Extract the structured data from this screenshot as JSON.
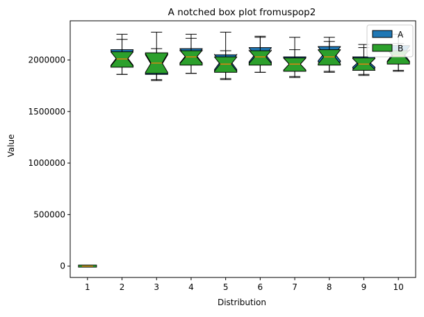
{
  "chart_data": {
    "type": "box",
    "title": "A notched box plot fromuspop2",
    "xlabel": "Distribution",
    "ylabel": "Value",
    "ylim": [
      -110000,
      2380000
    ],
    "xlim": [
      0.5,
      10.5
    ],
    "y_ticks": [
      0,
      500000,
      1000000,
      1500000,
      2000000
    ],
    "y_tick_labels": [
      "0",
      "500000",
      "1000000",
      "1500000",
      "2000000"
    ],
    "categories": [
      "1",
      "2",
      "3",
      "4",
      "5",
      "6",
      "7",
      "8",
      "9",
      "10"
    ],
    "grid": false,
    "legend_position": "top-right",
    "notched": true,
    "series": [
      {
        "name": "A",
        "color": "#1f77b4",
        "boxes": [
          {
            "x": 1,
            "whislo": 0,
            "q1": 0,
            "med": 0,
            "q3": 0,
            "whishi": 0
          },
          {
            "x": 2,
            "whislo": 1860000,
            "q1": 1940000,
            "med": 2020000,
            "q3": 2100000,
            "whishi": 2200000
          },
          {
            "x": 3,
            "whislo": 1800000,
            "q1": 1860000,
            "med": 1960000,
            "q3": 2060000,
            "whishi": 2270000
          },
          {
            "x": 4,
            "whislo": 1870000,
            "q1": 1960000,
            "med": 2040000,
            "q3": 2110000,
            "whishi": 2210000
          },
          {
            "x": 5,
            "whislo": 1810000,
            "q1": 1890000,
            "med": 1980000,
            "q3": 2050000,
            "whishi": 2270000
          },
          {
            "x": 6,
            "whislo": 1880000,
            "q1": 1970000,
            "med": 2050000,
            "q3": 2120000,
            "whishi": 2230000
          },
          {
            "x": 7,
            "whislo": 1840000,
            "q1": 1900000,
            "med": 1960000,
            "q3": 2030000,
            "whishi": 2220000
          },
          {
            "x": 8,
            "whislo": 1890000,
            "q1": 1980000,
            "med": 2060000,
            "q3": 2130000,
            "whishi": 2220000
          },
          {
            "x": 9,
            "whislo": 1860000,
            "q1": 1920000,
            "med": 1980000,
            "q3": 2030000,
            "whishi": 2150000
          },
          {
            "x": 10,
            "whislo": 1900000,
            "q1": 1980000,
            "med": 2060000,
            "q3": 2140000,
            "whishi": 2250000
          }
        ]
      },
      {
        "name": "B",
        "color": "#2ca02c",
        "boxes": [
          {
            "x": 1,
            "whislo": 0,
            "q1": 0,
            "med": 0,
            "q3": 0,
            "whishi": 0
          },
          {
            "x": 2,
            "whislo": 1860000,
            "q1": 1930000,
            "med": 2010000,
            "q3": 2080000,
            "whishi": 2250000
          },
          {
            "x": 3,
            "whislo": 1810000,
            "q1": 1870000,
            "med": 1970000,
            "q3": 2070000,
            "whishi": 2110000
          },
          {
            "x": 4,
            "whislo": 1870000,
            "q1": 1950000,
            "med": 2030000,
            "q3": 2090000,
            "whishi": 2250000
          },
          {
            "x": 5,
            "whislo": 1820000,
            "q1": 1880000,
            "med": 1960000,
            "q3": 2030000,
            "whishi": 2090000
          },
          {
            "x": 6,
            "whislo": 1880000,
            "q1": 1950000,
            "med": 2030000,
            "q3": 2090000,
            "whishi": 2220000
          },
          {
            "x": 7,
            "whislo": 1830000,
            "q1": 1890000,
            "med": 1960000,
            "q3": 2020000,
            "whishi": 2100000
          },
          {
            "x": 8,
            "whislo": 1880000,
            "q1": 1950000,
            "med": 2030000,
            "q3": 2100000,
            "whishi": 2180000
          },
          {
            "x": 9,
            "whislo": 1850000,
            "q1": 1900000,
            "med": 1960000,
            "q3": 2020000,
            "whishi": 2120000
          },
          {
            "x": 10,
            "whislo": 1890000,
            "q1": 1960000,
            "med": 2040000,
            "q3": 2090000,
            "whishi": 2160000
          }
        ]
      }
    ]
  }
}
